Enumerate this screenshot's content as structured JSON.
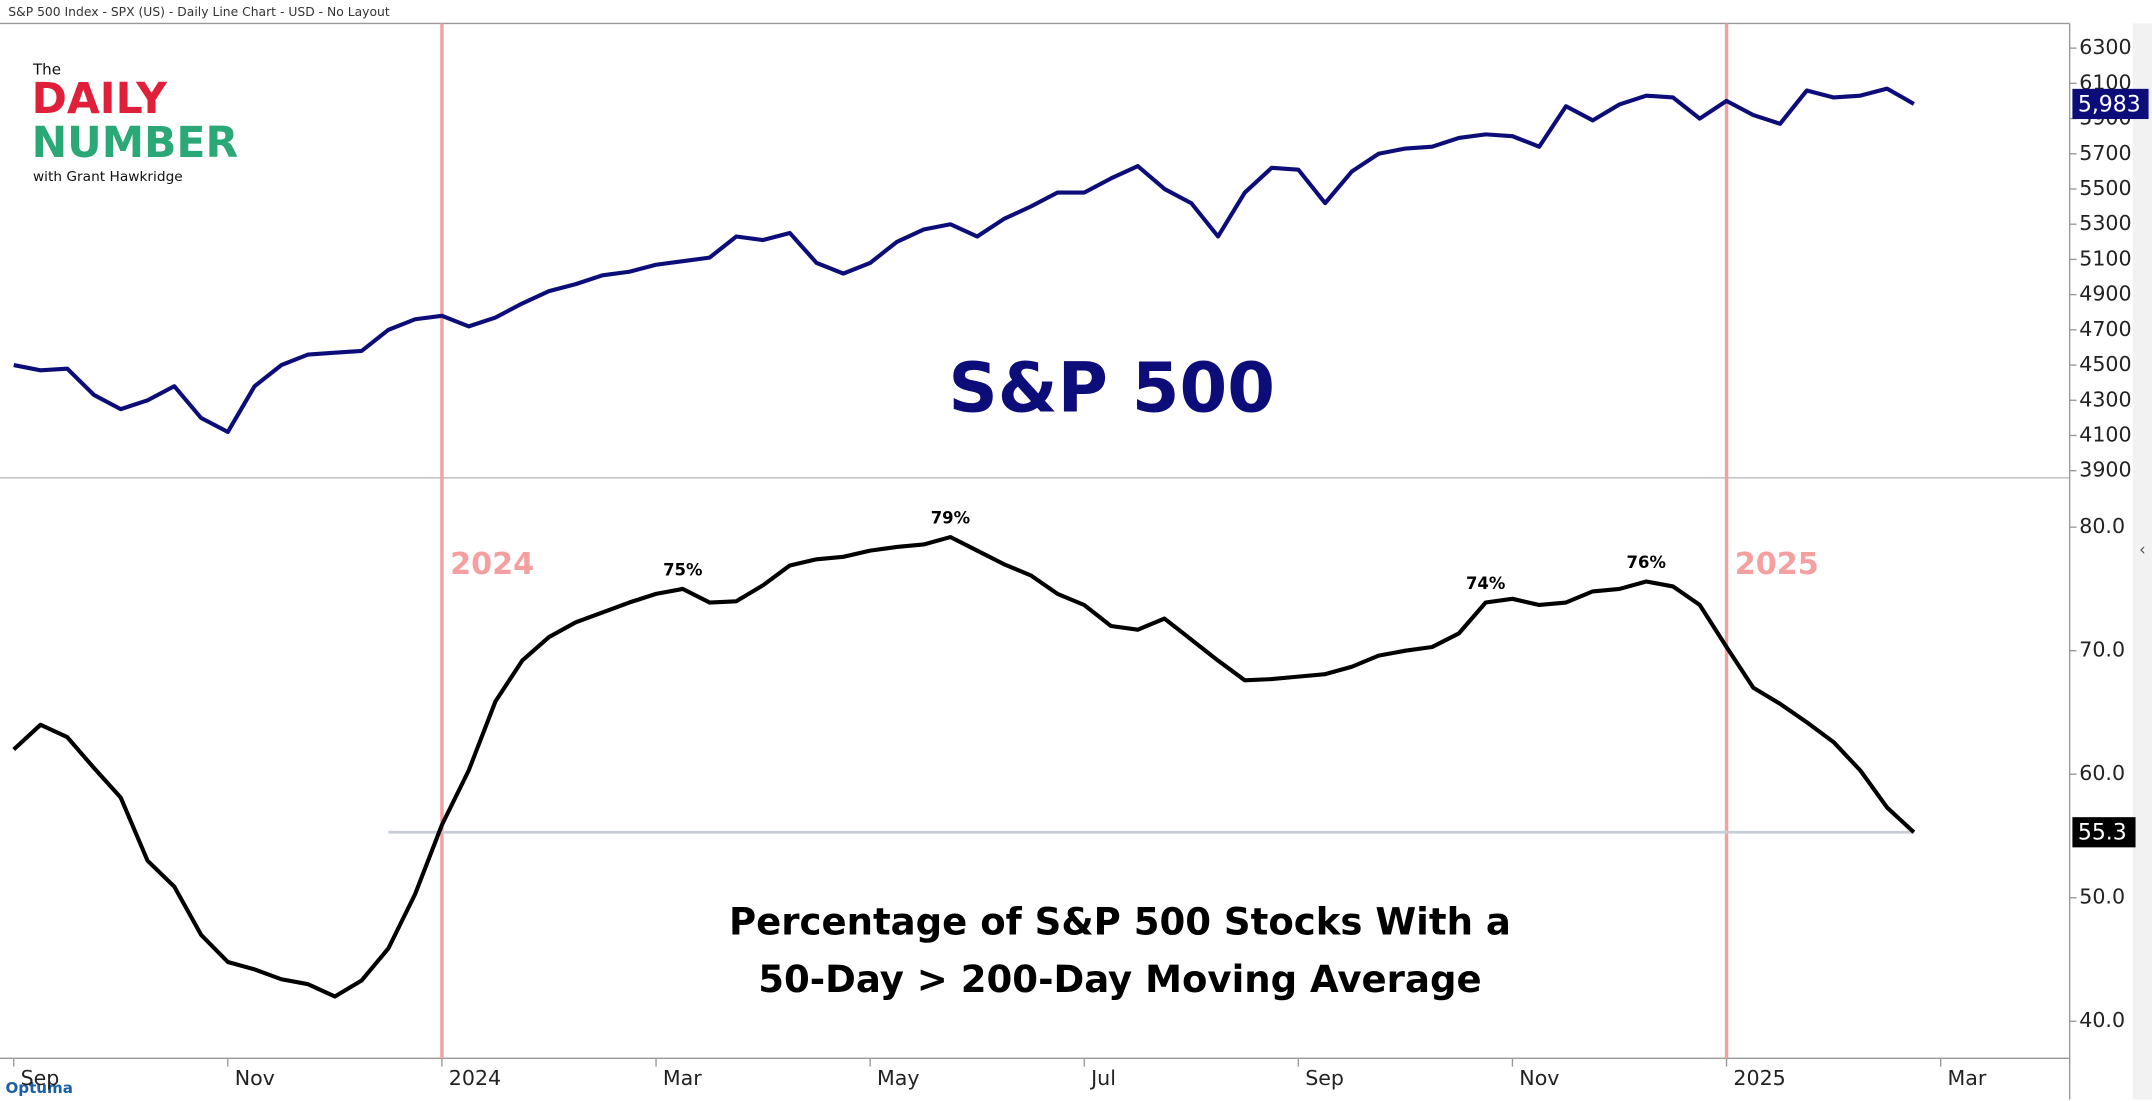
{
  "header": {
    "title": "S&P 500 Index - SPX (US) - Daily Line Chart - USD - No Layout"
  },
  "logo": {
    "the": "The",
    "line1": "DAILY",
    "line2": "NUMBER",
    "byline": "with Grant Hawkridge"
  },
  "footer": {
    "brand": "Optuma"
  },
  "chart_data": [
    {
      "type": "line",
      "title": "S&P 500",
      "categories": [
        "Sep",
        null,
        null,
        null,
        null,
        null,
        null,
        null,
        "Nov",
        null,
        null,
        null,
        null,
        null,
        null,
        null,
        "2024",
        null,
        null,
        null,
        null,
        null,
        null,
        null,
        "Mar",
        null,
        null,
        null,
        null,
        null,
        null,
        null,
        "May",
        null,
        null,
        null,
        null,
        null,
        null,
        null,
        "Jul",
        null,
        null,
        null,
        null,
        null,
        null,
        null,
        "Sep",
        null,
        null,
        null,
        null,
        null,
        null,
        null,
        "Nov",
        null,
        null,
        null,
        null,
        null,
        null,
        null,
        "2025",
        null,
        null,
        null,
        null,
        null,
        null,
        null,
        "Mar"
      ],
      "series": [
        {
          "name": "S&P 500",
          "color": "#0d0d7a",
          "values": [
            4500,
            4470,
            4480,
            4330,
            4250,
            4300,
            4380,
            4200,
            4120,
            4380,
            4500,
            4560,
            4570,
            4580,
            4700,
            4760,
            4780,
            4720,
            4770,
            4850,
            4920,
            4960,
            5010,
            5030,
            5070,
            5090,
            5110,
            5230,
            5210,
            5250,
            5080,
            5020,
            5080,
            5200,
            5270,
            5300,
            5230,
            5330,
            5400,
            5480,
            5480,
            5560,
            5630,
            5500,
            5420,
            5230,
            5480,
            5620,
            5610,
            5420,
            5600,
            5700,
            5730,
            5740,
            5790,
            5810,
            5800,
            5740,
            5970,
            5890,
            5980,
            6030,
            6020,
            5900,
            6000,
            5920,
            5870,
            6060,
            6020,
            6030,
            6070,
            5983,
            null
          ],
          "value_labels": [
            null,
            null,
            null,
            null,
            null,
            null,
            null,
            null,
            null,
            null,
            null,
            null,
            null,
            null,
            null,
            null,
            null,
            null,
            null,
            null,
            null,
            null,
            null,
            null,
            null,
            null,
            null,
            null,
            null,
            null,
            null,
            null,
            null,
            null,
            null,
            null,
            null,
            null,
            null,
            null,
            null,
            null,
            null,
            null,
            null,
            null,
            null,
            null,
            null,
            null,
            null,
            null,
            null,
            null,
            null,
            null,
            null,
            null,
            null,
            null,
            null,
            null,
            null,
            null,
            null,
            null,
            null,
            null,
            null,
            null,
            null,
            "5,983",
            null
          ]
        }
      ],
      "ylim": [
        3860,
        6440
      ],
      "yticks": [
        3900,
        4100,
        4300,
        4500,
        4700,
        4900,
        5100,
        5300,
        5500,
        5700,
        5900,
        6100,
        6300
      ],
      "vlines": [
        "2024",
        "2025"
      ],
      "badge_color": "#0d0d7a"
    },
    {
      "type": "line",
      "title": [
        "Percentage of S&P 500 Stocks With a",
        "50-Day > 200-Day Moving Average"
      ],
      "categories": [
        "Sep",
        null,
        null,
        null,
        null,
        null,
        null,
        null,
        "Nov",
        null,
        null,
        null,
        null,
        null,
        null,
        null,
        "2024",
        null,
        null,
        null,
        null,
        null,
        null,
        null,
        "Mar",
        null,
        null,
        null,
        null,
        null,
        null,
        null,
        "May",
        null,
        null,
        null,
        null,
        null,
        null,
        null,
        "Jul",
        null,
        null,
        null,
        null,
        null,
        null,
        null,
        "Sep",
        null,
        null,
        null,
        null,
        null,
        null,
        null,
        "Nov",
        null,
        null,
        null,
        null,
        null,
        null,
        null,
        "2025",
        null,
        null,
        null,
        null,
        null,
        null,
        null,
        "Mar"
      ],
      "series": [
        {
          "name": "Percentage",
          "color": "#000000",
          "values": [
            62.0,
            64.0,
            63.0,
            60.5,
            58.1,
            53.0,
            50.9,
            47.0,
            44.8,
            44.2,
            43.4,
            43.0,
            42.0,
            43.3,
            45.9,
            50.3,
            55.9,
            60.3,
            65.9,
            69.2,
            71.1,
            72.3,
            73.1,
            73.9,
            74.6,
            75.0,
            73.9,
            74.0,
            75.3,
            76.9,
            77.4,
            77.6,
            78.1,
            78.4,
            78.6,
            79.2,
            78.1,
            77.0,
            76.1,
            74.6,
            73.7,
            72.0,
            71.7,
            72.6,
            70.9,
            69.2,
            67.6,
            67.7,
            67.9,
            68.1,
            68.7,
            69.6,
            70.0,
            70.3,
            71.4,
            73.9,
            74.2,
            73.7,
            73.9,
            74.8,
            75.0,
            75.6,
            75.2,
            73.7,
            70.3,
            67.0,
            65.7,
            64.2,
            62.6,
            60.3,
            57.3,
            55.3,
            null
          ],
          "value_labels": [
            null,
            null,
            null,
            null,
            null,
            null,
            null,
            null,
            null,
            null,
            null,
            null,
            null,
            null,
            null,
            null,
            null,
            null,
            null,
            null,
            null,
            null,
            null,
            null,
            null,
            "75%",
            null,
            null,
            null,
            null,
            null,
            null,
            null,
            null,
            null,
            "79%",
            null,
            null,
            null,
            null,
            null,
            null,
            null,
            null,
            null,
            null,
            null,
            null,
            null,
            null,
            null,
            null,
            null,
            null,
            null,
            "74%",
            null,
            null,
            null,
            null,
            null,
            "76%",
            null,
            null,
            null,
            null,
            null,
            null,
            null,
            null,
            null,
            "55.3",
            null
          ]
        }
      ],
      "ylim": [
        37,
        84
      ],
      "yticks": [
        {
          "value": 40,
          "label": "40.0"
        },
        {
          "value": 50,
          "label": "50.0"
        },
        {
          "value": 60,
          "label": "60.0"
        },
        {
          "value": 70,
          "label": "70.0"
        },
        {
          "value": 80,
          "label": "80.0"
        }
      ],
      "vlines": [
        "2024",
        "2025"
      ],
      "vline_labels": true,
      "badge_color": "#000000",
      "last_value_line": true
    }
  ]
}
